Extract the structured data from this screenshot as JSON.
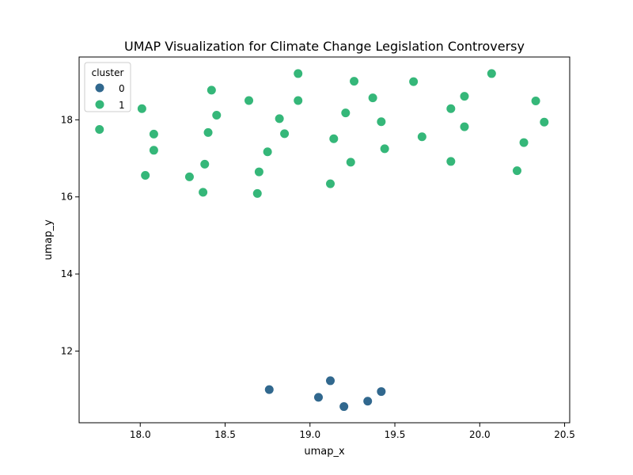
{
  "chart_data": {
    "type": "scatter",
    "title": "UMAP Visualization for Climate Change Legislation Controversy",
    "xlabel": "umap_x",
    "ylabel": "umap_y",
    "xlim": [
      17.64,
      20.53
    ],
    "ylim": [
      10.14,
      19.63
    ],
    "xticks": [
      18.0,
      18.5,
      19.0,
      19.5,
      20.0,
      20.5
    ],
    "xtick_labels": [
      "18.0",
      "18.5",
      "19.0",
      "19.5",
      "20.0",
      "20.5"
    ],
    "yticks": [
      12,
      14,
      16,
      18
    ],
    "ytick_labels": [
      "12",
      "14",
      "16",
      "18"
    ],
    "grid": false,
    "legend": {
      "title": "cluster",
      "placement": "top-left",
      "entries": [
        {
          "label": "0",
          "color": "#31688e"
        },
        {
          "label": "1",
          "color": "#35b779"
        }
      ]
    },
    "series": [
      {
        "name": "0",
        "color": "#31688e",
        "points": [
          {
            "x": 18.76,
            "y": 11.0
          },
          {
            "x": 19.05,
            "y": 10.8
          },
          {
            "x": 19.12,
            "y": 11.23
          },
          {
            "x": 19.2,
            "y": 10.56
          },
          {
            "x": 19.34,
            "y": 10.7
          },
          {
            "x": 19.42,
            "y": 10.95
          }
        ]
      },
      {
        "name": "1",
        "color": "#35b779",
        "points": [
          {
            "x": 17.76,
            "y": 17.75
          },
          {
            "x": 18.01,
            "y": 18.29
          },
          {
            "x": 18.03,
            "y": 16.56
          },
          {
            "x": 18.08,
            "y": 17.63
          },
          {
            "x": 18.08,
            "y": 17.21
          },
          {
            "x": 18.29,
            "y": 16.52
          },
          {
            "x": 18.37,
            "y": 16.12
          },
          {
            "x": 18.38,
            "y": 16.85
          },
          {
            "x": 18.4,
            "y": 17.67
          },
          {
            "x": 18.42,
            "y": 18.77
          },
          {
            "x": 18.45,
            "y": 18.12
          },
          {
            "x": 18.64,
            "y": 18.5
          },
          {
            "x": 18.69,
            "y": 16.09
          },
          {
            "x": 18.7,
            "y": 16.65
          },
          {
            "x": 18.75,
            "y": 17.17
          },
          {
            "x": 18.82,
            "y": 18.03
          },
          {
            "x": 18.85,
            "y": 17.64
          },
          {
            "x": 18.93,
            "y": 19.2
          },
          {
            "x": 18.93,
            "y": 18.5
          },
          {
            "x": 19.12,
            "y": 16.34
          },
          {
            "x": 19.14,
            "y": 17.51
          },
          {
            "x": 19.21,
            "y": 18.18
          },
          {
            "x": 19.24,
            "y": 16.9
          },
          {
            "x": 19.26,
            "y": 19.0
          },
          {
            "x": 19.37,
            "y": 18.57
          },
          {
            "x": 19.42,
            "y": 17.95
          },
          {
            "x": 19.44,
            "y": 17.25
          },
          {
            "x": 19.61,
            "y": 18.99
          },
          {
            "x": 19.66,
            "y": 17.56
          },
          {
            "x": 19.83,
            "y": 18.29
          },
          {
            "x": 19.83,
            "y": 16.92
          },
          {
            "x": 19.91,
            "y": 18.61
          },
          {
            "x": 19.91,
            "y": 17.82
          },
          {
            "x": 20.07,
            "y": 19.2
          },
          {
            "x": 20.22,
            "y": 16.68
          },
          {
            "x": 20.26,
            "y": 17.41
          },
          {
            "x": 20.33,
            "y": 18.49
          },
          {
            "x": 20.38,
            "y": 17.94
          }
        ]
      }
    ]
  }
}
